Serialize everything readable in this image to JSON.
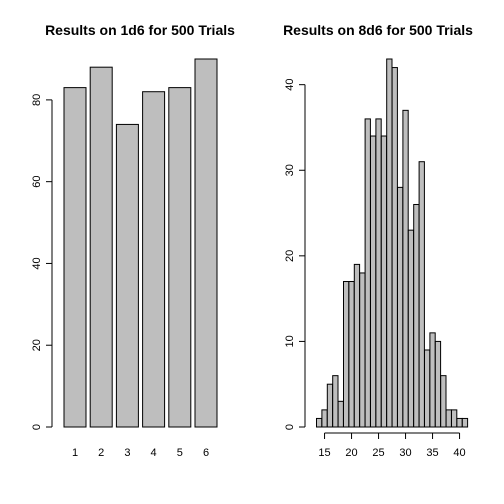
{
  "chart_data": [
    {
      "type": "bar",
      "title": "Results on 1d6 for 500 Trials",
      "xlabel": "",
      "ylabel": "",
      "categories": [
        "1",
        "2",
        "3",
        "4",
        "5",
        "6"
      ],
      "values": [
        83,
        88,
        74,
        82,
        83,
        90
      ],
      "ylim": [
        0,
        90
      ],
      "y_ticks": [
        0,
        20,
        40,
        60,
        80
      ],
      "grid": false,
      "colors": {
        "bar_fill": "#bebebe",
        "bar_stroke": "#000000"
      }
    },
    {
      "type": "bar",
      "title": "Results on 8d6 for 500 Trials",
      "xlabel": "",
      "ylabel": "",
      "categories": [
        "14",
        "15",
        "16",
        "17",
        "18",
        "19",
        "20",
        "21",
        "22",
        "23",
        "24",
        "25",
        "26",
        "27",
        "28",
        "29",
        "30",
        "31",
        "32",
        "33",
        "34",
        "35",
        "36",
        "37",
        "38",
        "39",
        "40",
        "41",
        "42"
      ],
      "values": [
        1,
        2,
        5,
        6,
        3,
        17,
        17,
        19,
        18,
        36,
        34,
        36,
        34,
        43,
        42,
        28,
        37,
        23,
        26,
        31,
        9,
        11,
        10,
        6,
        2,
        2,
        1,
        1,
        0
      ],
      "ylim": [
        0,
        43
      ],
      "y_ticks": [
        0,
        10,
        20,
        30,
        40
      ],
      "x_ticks": [
        15,
        20,
        25,
        30,
        35,
        40
      ],
      "grid": false,
      "colors": {
        "bar_fill": "#bebebe",
        "bar_stroke": "#000000"
      }
    }
  ]
}
